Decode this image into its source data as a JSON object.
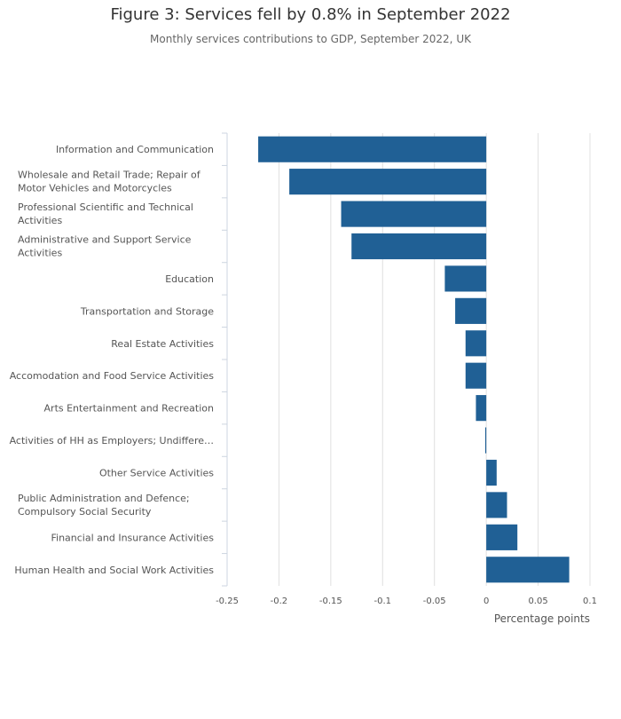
{
  "title": "Figure 3: Services fell by 0.8% in September 2022",
  "subtitle": "Monthly services contributions to GDP, September 2022, UK",
  "chart_data": {
    "type": "bar",
    "orientation": "horizontal",
    "categories": [
      "Information and Communication",
      "Wholesale and Retail Trade; Repair of Motor Vehicles and Motorcycles",
      "Professional Scientific and Technical Activities",
      "Administrative and Support Service Activities",
      "Education",
      "Transportation and Storage",
      "Real Estate Activities",
      "Accomodation and Food Service Activities",
      "Arts Entertainment and Recreation",
      "Activities of HH as Employers; Undiffere…",
      "Other Service Activities",
      "Public Administration and Defence; Compulsory Social Security",
      "Financial and Insurance Activities",
      "Human Health and Social Work Activities"
    ],
    "label_lines": [
      [
        "Information and Communication"
      ],
      [
        "Wholesale and Retail Trade; Repair of",
        "Motor Vehicles and Motorcycles"
      ],
      [
        "Professional Scientific and Technical",
        "Activities"
      ],
      [
        "Administrative and Support Service",
        "Activities"
      ],
      [
        "Education"
      ],
      [
        "Transportation and Storage"
      ],
      [
        "Real Estate Activities"
      ],
      [
        "Accomodation and Food Service Activities"
      ],
      [
        "Arts Entertainment and Recreation"
      ],
      [
        "Activities of HH as Employers; Undiffere…"
      ],
      [
        "Other Service Activities"
      ],
      [
        "Public Administration and Defence;",
        "Compulsory Social Security"
      ],
      [
        "Financial and Insurance Activities"
      ],
      [
        "Human Health and Social Work Activities"
      ]
    ],
    "values": [
      -0.22,
      -0.19,
      -0.14,
      -0.13,
      -0.04,
      -0.03,
      -0.02,
      -0.02,
      -0.01,
      -0.001,
      0.01,
      0.02,
      0.03,
      0.08
    ],
    "xlabel": "Percentage points",
    "xlim": [
      -0.25,
      0.1
    ],
    "xticks": [
      -0.25,
      -0.2,
      -0.15,
      -0.1,
      -0.05,
      0,
      0.05,
      0.1
    ],
    "xtick_labels": [
      "-0.25",
      "-0.2",
      "-0.15",
      "-0.1",
      "-0.05",
      "0",
      "0.05",
      "0.1"
    ],
    "bar_color": "#206095",
    "grid": true
  }
}
